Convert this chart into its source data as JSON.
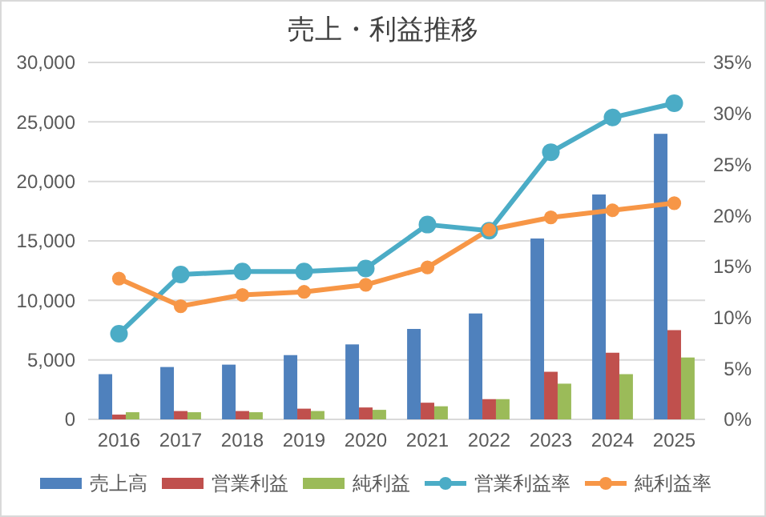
{
  "chart_data": {
    "type": "bar",
    "title": "売上・利益推移",
    "categories": [
      "2016",
      "2017",
      "2018",
      "2019",
      "2020",
      "2021",
      "2022",
      "2023",
      "2024",
      "2025"
    ],
    "series": [
      {
        "name": "売上高",
        "color": "#4f81bd",
        "values": [
          3800,
          4400,
          4600,
          5400,
          6300,
          7600,
          8900,
          15200,
          18900,
          24000
        ]
      },
      {
        "name": "営業利益",
        "color": "#c0504d",
        "values": [
          400,
          700,
          700,
          900,
          1000,
          1400,
          1700,
          4000,
          5600,
          7500
        ]
      },
      {
        "name": "純利益",
        "color": "#9bbb59",
        "values": [
          600,
          600,
          600,
          700,
          800,
          1100,
          1700,
          3000,
          3800,
          5200
        ]
      },
      {
        "name": "営業利益率",
        "type": "line",
        "axis": "y2",
        "color": "#4bacc6",
        "values": [
          8.4,
          14.2,
          14.5,
          14.5,
          14.8,
          19.1,
          18.5,
          26.2,
          29.6,
          31.0
        ]
      },
      {
        "name": "純利益率",
        "type": "line",
        "axis": "y2",
        "color": "#f79646",
        "values": [
          13.8,
          11.1,
          12.2,
          12.5,
          13.2,
          14.9,
          18.6,
          19.8,
          20.5,
          21.2
        ]
      }
    ],
    "ylim": [
      0,
      30000
    ],
    "yticks": [
      {
        "value": 0,
        "label": "0"
      },
      {
        "value": 5000,
        "label": "5,000"
      },
      {
        "value": 10000,
        "label": "10,000"
      },
      {
        "value": 15000,
        "label": "15,000"
      },
      {
        "value": 20000,
        "label": "20,000"
      },
      {
        "value": 25000,
        "label": "25,000"
      },
      {
        "value": 30000,
        "label": "30,000"
      }
    ],
    "y2lim": [
      0,
      35
    ],
    "y2ticks": [
      {
        "value": 0,
        "label": "0%"
      },
      {
        "value": 5,
        "label": "5%"
      },
      {
        "value": 10,
        "label": "10%"
      },
      {
        "value": 15,
        "label": "15%"
      },
      {
        "value": 20,
        "label": "20%"
      },
      {
        "value": 25,
        "label": "25%"
      },
      {
        "value": 30,
        "label": "30%"
      },
      {
        "value": 35,
        "label": "35%"
      }
    ],
    "grid": "y",
    "legend": "bottom",
    "marker": "circle"
  }
}
